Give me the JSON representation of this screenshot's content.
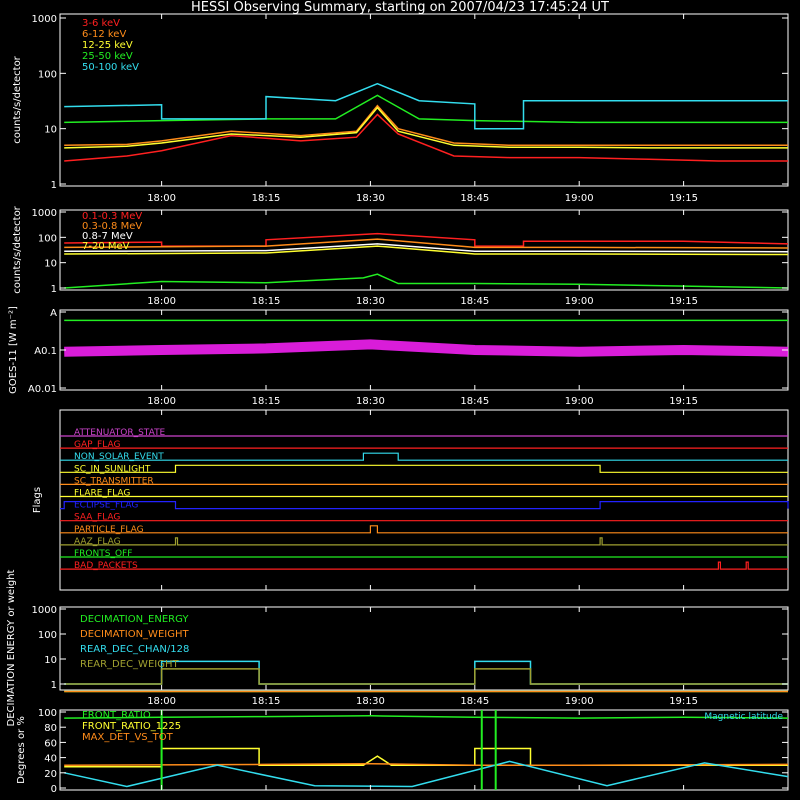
{
  "title": "HESSI Observing Summary, starting on 2007/04/23 17:45:24 UT",
  "time_ticks": [
    "18:00",
    "18:15",
    "18:30",
    "18:45",
    "19:00",
    "19:15"
  ],
  "colors": {
    "red": "#ff2020",
    "orange": "#ff8c1a",
    "yellow": "#ffff30",
    "green": "#22ee22",
    "cyan": "#33ddee",
    "magenta": "#ff22ff",
    "blue": "#2222ff",
    "olive": "#a0a030",
    "purple": "#cc44cc",
    "white": "#ffffff"
  },
  "chart_data": [
    {
      "panel": "low_energy",
      "type": "line",
      "ylabel": "counts/s/detector",
      "yscale": "log",
      "ylim": [
        1,
        1000
      ],
      "yticks": [
        "1",
        "10",
        "100",
        "1000"
      ],
      "x_range": [
        "17:45:24",
        "19:30:00"
      ],
      "series": [
        {
          "name": "3-6 keV",
          "color": "red",
          "x": [
            "17:46",
            "17:55",
            "18:00",
            "18:10",
            "18:20",
            "18:28",
            "18:31",
            "18:34",
            "18:42",
            "18:50",
            "19:00",
            "19:10",
            "19:20",
            "19:30"
          ],
          "values": [
            2.6,
            3.2,
            4.0,
            7.5,
            6.0,
            7.0,
            18,
            8,
            3.2,
            3.0,
            3.0,
            2.8,
            2.6,
            2.6
          ]
        },
        {
          "name": "6-12 keV",
          "color": "orange",
          "x": [
            "17:46",
            "17:55",
            "18:00",
            "18:10",
            "18:20",
            "18:28",
            "18:31",
            "18:34",
            "18:42",
            "18:50",
            "19:00",
            "19:10",
            "19:20",
            "19:30"
          ],
          "values": [
            5.0,
            5.2,
            6.0,
            9.0,
            7.5,
            9.0,
            26,
            10,
            5.5,
            5.0,
            5.0,
            5.0,
            5.0,
            5.0
          ]
        },
        {
          "name": "12-25 keV",
          "color": "yellow",
          "x": [
            "17:46",
            "17:55",
            "18:00",
            "18:10",
            "18:20",
            "18:28",
            "18:31",
            "18:34",
            "18:42",
            "18:50",
            "19:00",
            "19:10",
            "19:20",
            "19:30"
          ],
          "values": [
            4.5,
            4.8,
            5.5,
            8.0,
            7.0,
            8.5,
            24,
            9,
            5.0,
            4.6,
            4.6,
            4.5,
            4.5,
            4.5
          ]
        },
        {
          "name": "25-50 keV",
          "color": "green",
          "x": [
            "17:46",
            "18:00",
            "18:15",
            "18:25",
            "18:31",
            "18:37",
            "18:45",
            "19:00",
            "19:15",
            "19:30"
          ],
          "values": [
            13,
            14,
            15,
            15,
            40,
            15,
            14,
            13,
            13,
            13
          ]
        },
        {
          "name": "50-100 keV",
          "color": "cyan",
          "x": [
            "17:46",
            "18:00",
            "18:00",
            "18:15",
            "18:15",
            "18:25",
            "18:31",
            "18:37",
            "18:45",
            "18:45",
            "18:52",
            "18:52",
            "19:15",
            "19:30"
          ],
          "values": [
            25,
            27,
            15,
            15,
            38,
            32,
            65,
            32,
            28,
            10,
            10,
            32,
            32,
            32
          ]
        }
      ]
    },
    {
      "panel": "high_energy",
      "type": "line",
      "ylabel": "counts/s/detector",
      "yscale": "log",
      "ylim": [
        1,
        1000
      ],
      "yticks": [
        "1",
        "10",
        "100",
        "1000"
      ],
      "x_range": [
        "17:45:24",
        "19:30:00"
      ],
      "series": [
        {
          "name": "0.1-0.3 MeV",
          "color": "red",
          "x": [
            "17:46",
            "18:00",
            "18:00",
            "18:15",
            "18:15",
            "18:31",
            "18:45",
            "18:45",
            "18:52",
            "18:52",
            "19:15",
            "19:30"
          ],
          "values": [
            60,
            65,
            45,
            45,
            80,
            140,
            80,
            45,
            45,
            70,
            70,
            55
          ]
        },
        {
          "name": "0.3-0.8 MeV",
          "color": "orange",
          "x": [
            "17:46",
            "18:15",
            "18:31",
            "18:45",
            "19:00",
            "19:30"
          ],
          "values": [
            40,
            45,
            85,
            40,
            40,
            38
          ]
        },
        {
          "name": "0.8-7 MeV",
          "color": "white",
          "x": [
            "17:46",
            "18:15",
            "18:31",
            "18:45",
            "19:00",
            "19:30"
          ],
          "values": [
            28,
            30,
            55,
            28,
            28,
            27
          ]
        },
        {
          "name": "7-20 MeV",
          "color": "yellow",
          "x": [
            "17:46",
            "18:15",
            "18:31",
            "18:45",
            "19:00",
            "19:30"
          ],
          "values": [
            22,
            24,
            45,
            22,
            22,
            21
          ]
        },
        {
          "name": "",
          "color": "green",
          "x": [
            "17:46",
            "18:00",
            "18:15",
            "18:29",
            "18:31",
            "18:34",
            "18:45",
            "19:00",
            "19:30"
          ],
          "values": [
            1,
            1.8,
            1.6,
            2.5,
            3.5,
            1.5,
            1.5,
            1.4,
            1
          ]
        }
      ]
    },
    {
      "panel": "goes",
      "type": "line",
      "ylabel": "GOES-11 [W m⁻²]",
      "yscale": "log",
      "ylim": [
        0.01,
        1
      ],
      "yticks": [
        "A0.01",
        "A0.1",
        "A"
      ],
      "series": [
        {
          "name": "",
          "color": "magenta",
          "x": [
            "17:46",
            "18:00",
            "18:15",
            "18:30",
            "18:45",
            "19:00",
            "19:15",
            "19:30"
          ],
          "values": [
            0.09,
            0.1,
            0.11,
            0.14,
            0.1,
            0.09,
            0.1,
            0.09
          ]
        },
        {
          "name": "",
          "color": "green",
          "x": [
            "17:46",
            "19:30"
          ],
          "values": [
            0.6,
            0.6
          ]
        }
      ]
    },
    {
      "panel": "flags",
      "type": "line",
      "ylabel": "Flags",
      "flags": [
        {
          "name": "ATTENUATOR_STATE",
          "color": "purple",
          "high": []
        },
        {
          "name": "GAP_FLAG",
          "color": "red",
          "high": []
        },
        {
          "name": "NON_SOLAR_EVENT",
          "color": "cyan",
          "high": [
            [
              "18:29",
              "18:34"
            ]
          ]
        },
        {
          "name": "SC_IN_SUNLIGHT",
          "color": "yellow",
          "high": [
            [
              "18:02",
              "19:03"
            ]
          ]
        },
        {
          "name": "SC_TRANSMITTER",
          "color": "orange",
          "high": []
        },
        {
          "name": "FLARE_FLAG",
          "color": "yellow",
          "high": []
        },
        {
          "name": "ECLIPSE_FLAG",
          "color": "blue",
          "high": [
            [
              "17:46",
              "18:02"
            ],
            [
              "19:03",
              "19:30"
            ]
          ]
        },
        {
          "name": "SAA_FLAG",
          "color": "red",
          "high": []
        },
        {
          "name": "PARTICLE_FLAG",
          "color": "orange",
          "high": [
            [
              "18:30",
              "18:31"
            ]
          ]
        },
        {
          "name": "AAZ_FLAG",
          "color": "olive",
          "high": [
            [
              "18:02",
              "18:02"
            ],
            [
              "19:03",
              "19:03"
            ]
          ]
        },
        {
          "name": "FRONTS_OFF",
          "color": "green",
          "high": []
        },
        {
          "name": "BAD_PACKETS",
          "color": "red",
          "high": [
            [
              "19:20",
              "19:20"
            ],
            [
              "19:24",
              "19:24"
            ]
          ]
        }
      ]
    },
    {
      "panel": "decimation",
      "type": "line",
      "ylabel": "DECIMATION ENERGY or weight",
      "yscale": "log",
      "ylim": [
        0.5,
        1000
      ],
      "yticks": [
        "1",
        "10",
        "100",
        "1000"
      ],
      "series": [
        {
          "name": "DECIMATION_ENERGY",
          "color": "green",
          "x": [
            "17:46",
            "19:30"
          ],
          "values": [
            0,
            0
          ]
        },
        {
          "name": "DECIMATION_WEIGHT",
          "color": "orange",
          "x": [
            "17:46",
            "19:30"
          ],
          "values": [
            0,
            0
          ]
        },
        {
          "name": "REAR_DEC_CHAN/128",
          "color": "cyan",
          "x": [
            "17:46",
            "18:00",
            "18:00",
            "18:14",
            "18:14",
            "18:45",
            "18:45",
            "18:53",
            "18:53",
            "19:30"
          ],
          "values": [
            1,
            1,
            8,
            8,
            1,
            1,
            8,
            8,
            1,
            1
          ]
        },
        {
          "name": "REAR_DEC_WEIGHT",
          "color": "olive",
          "x": [
            "17:46",
            "18:00",
            "18:00",
            "18:14",
            "18:14",
            "18:45",
            "18:45",
            "18:53",
            "18:53",
            "19:30"
          ],
          "values": [
            1,
            1,
            4,
            4,
            1,
            1,
            4,
            4,
            1,
            1
          ]
        }
      ]
    },
    {
      "panel": "ratios",
      "type": "line",
      "ylabel": "Degrees or %",
      "ylim": [
        0,
        100
      ],
      "yticks": [
        "0",
        "20",
        "40",
        "60",
        "80",
        "100"
      ],
      "annotation": "Magnetic latitude",
      "series": [
        {
          "name": "FRONT_RATIO",
          "color": "green",
          "x": [
            "17:46",
            "18:00",
            "18:15",
            "18:30",
            "18:45",
            "19:00",
            "19:15",
            "19:30"
          ],
          "values": [
            92,
            93,
            94,
            95,
            93,
            92,
            93,
            92
          ]
        },
        {
          "name": "FRONT_RATIO_1225",
          "color": "yellow",
          "x": [
            "17:46",
            "18:00",
            "18:00",
            "18:14",
            "18:14",
            "18:29",
            "18:31",
            "18:33",
            "18:45",
            "18:45",
            "18:53",
            "18:53",
            "19:30"
          ],
          "values": [
            28,
            28,
            52,
            52,
            30,
            30,
            42,
            30,
            30,
            52,
            52,
            30,
            30
          ]
        },
        {
          "name": "MAX_DET_VS_TOT",
          "color": "orange",
          "x": [
            "17:46",
            "18:15",
            "18:30",
            "18:45",
            "19:00",
            "19:30"
          ],
          "values": [
            30,
            31,
            32,
            30,
            30,
            31
          ]
        },
        {
          "name": "",
          "color": "cyan",
          "x": [
            "17:46",
            "17:55",
            "18:08",
            "18:22",
            "18:36",
            "18:50",
            "19:04",
            "19:18",
            "19:30"
          ],
          "values": [
            20,
            2,
            30,
            3,
            2,
            35,
            3,
            33,
            15
          ]
        }
      ]
    }
  ]
}
